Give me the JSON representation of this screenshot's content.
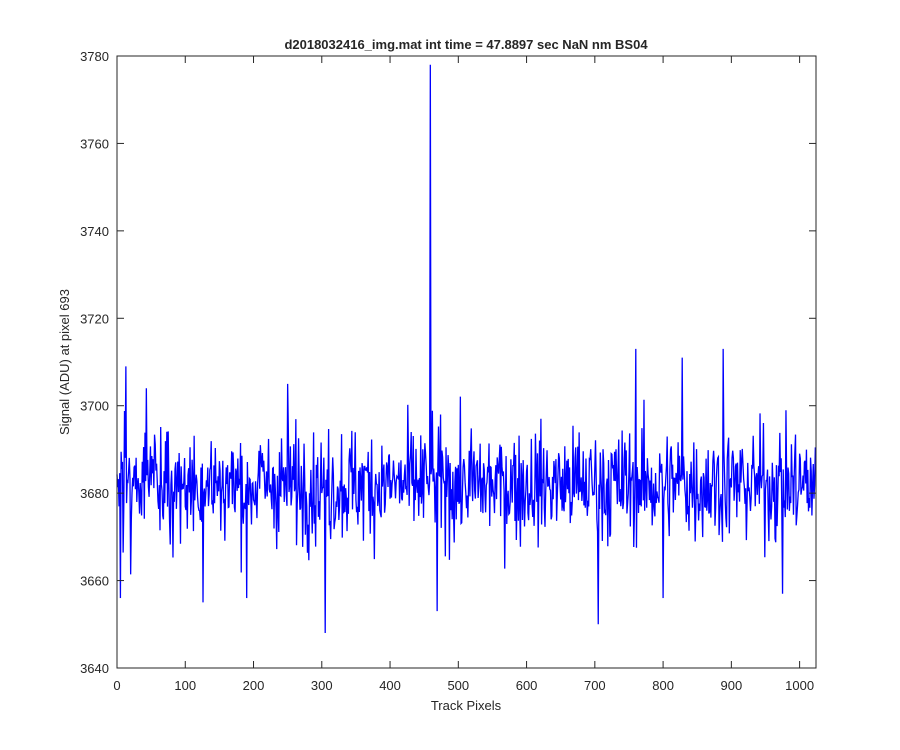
{
  "chart_data": {
    "type": "line",
    "title": "d2018032416_img.mat int time = 47.8897 sec  NaN nm BS04",
    "xlabel": "Track Pixels",
    "ylabel": "Signal (ADU) at pixel 693",
    "xlim": [
      0,
      1024
    ],
    "ylim": [
      3640,
      3780
    ],
    "xticks": [
      0,
      100,
      200,
      300,
      400,
      500,
      600,
      700,
      800,
      900,
      1000
    ],
    "yticks": [
      3640,
      3660,
      3680,
      3700,
      3720,
      3740,
      3760,
      3780
    ],
    "grid": false,
    "line_color": "#0000ff",
    "n_points": 1024,
    "baseline_mean": 3682,
    "noise_range": [
      3648,
      3713
    ],
    "series": [
      {
        "name": "",
        "peaks": [
          {
            "x": 13,
            "y": 3709
          },
          {
            "x": 43,
            "y": 3704
          },
          {
            "x": 250,
            "y": 3705
          },
          {
            "x": 459,
            "y": 3778
          },
          {
            "x": 760,
            "y": 3713
          },
          {
            "x": 828,
            "y": 3711
          },
          {
            "x": 888,
            "y": 3713
          }
        ],
        "dips": [
          {
            "x": 5,
            "y": 3656
          },
          {
            "x": 126,
            "y": 3655
          },
          {
            "x": 190,
            "y": 3656
          },
          {
            "x": 305,
            "y": 3648
          },
          {
            "x": 469,
            "y": 3653
          },
          {
            "x": 705,
            "y": 3650
          },
          {
            "x": 800,
            "y": 3656
          },
          {
            "x": 975,
            "y": 3657
          }
        ]
      }
    ]
  }
}
